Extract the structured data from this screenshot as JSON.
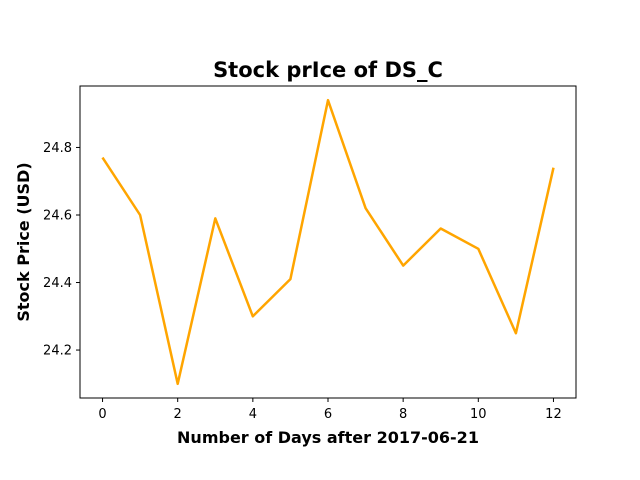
{
  "chart_data": {
    "type": "line",
    "title": "Stock prIce of DS_C",
    "xlabel": "Number of Days after 2017-06-21",
    "ylabel": "Stock Price (USD)",
    "x": [
      0,
      1,
      2,
      3,
      4,
      5,
      6,
      7,
      8,
      9,
      10,
      11,
      12
    ],
    "series": [
      {
        "values": [
          24.77,
          24.6,
          24.1,
          24.59,
          24.3,
          24.41,
          24.94,
          24.62,
          24.45,
          24.56,
          24.5,
          24.25,
          24.74
        ],
        "color": "#FFA500"
      }
    ],
    "xticks": [
      "0",
      "2",
      "4",
      "6",
      "8",
      "10",
      "12"
    ],
    "yticks": [
      "24.2",
      "24.4",
      "24.6",
      "24.8"
    ],
    "xlim": [
      -0.6,
      12.6
    ],
    "ylim": [
      24.058,
      24.982
    ],
    "grid": false,
    "legend": false
  }
}
